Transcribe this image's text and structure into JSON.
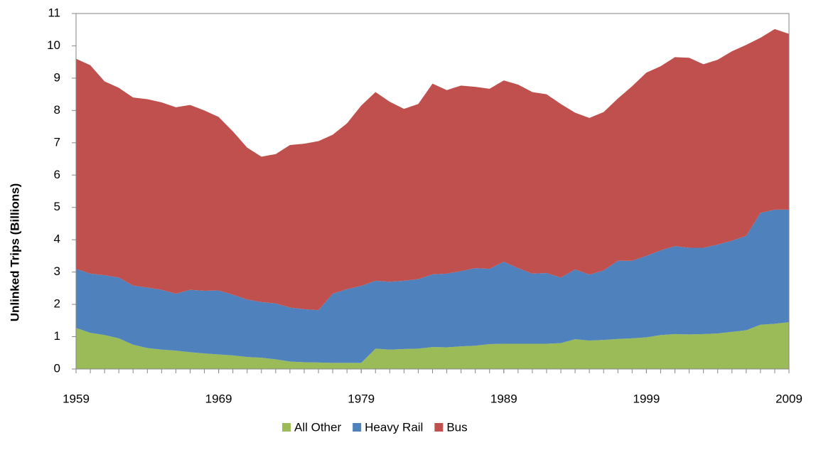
{
  "chart_data": {
    "type": "stacked_area",
    "y_label": "Unlinked Trips (Billions)",
    "x": [
      1959,
      1960,
      1961,
      1962,
      1963,
      1964,
      1965,
      1966,
      1967,
      1968,
      1969,
      1970,
      1971,
      1972,
      1973,
      1974,
      1975,
      1976,
      1977,
      1978,
      1979,
      1980,
      1981,
      1982,
      1983,
      1984,
      1985,
      1986,
      1987,
      1988,
      1989,
      1990,
      1991,
      1992,
      1993,
      1994,
      1995,
      1996,
      1997,
      1998,
      1999,
      2000,
      2001,
      2002,
      2003,
      2004,
      2005,
      2006,
      2007,
      2008,
      2009
    ],
    "series": [
      {
        "name": "All Other",
        "color": "#9bbb59",
        "values": [
          1.27,
          1.12,
          1.05,
          0.95,
          0.75,
          0.65,
          0.6,
          0.57,
          0.52,
          0.48,
          0.45,
          0.42,
          0.37,
          0.35,
          0.3,
          0.23,
          0.21,
          0.2,
          0.19,
          0.19,
          0.19,
          0.63,
          0.6,
          0.62,
          0.63,
          0.68,
          0.67,
          0.7,
          0.72,
          0.77,
          0.78,
          0.78,
          0.78,
          0.78,
          0.8,
          0.92,
          0.88,
          0.9,
          0.93,
          0.95,
          0.98,
          1.05,
          1.08,
          1.07,
          1.08,
          1.1,
          1.15,
          1.2,
          1.37,
          1.4,
          1.45
        ]
      },
      {
        "name": "Heavy Rail",
        "color": "#4f81bd",
        "values": [
          1.83,
          1.83,
          1.85,
          1.88,
          1.83,
          1.87,
          1.85,
          1.76,
          1.93,
          1.94,
          1.98,
          1.88,
          1.78,
          1.72,
          1.73,
          1.67,
          1.64,
          1.62,
          2.14,
          2.28,
          2.38,
          2.1,
          2.1,
          2.11,
          2.15,
          2.25,
          2.28,
          2.33,
          2.4,
          2.33,
          2.54,
          2.34,
          2.17,
          2.19,
          2.03,
          2.16,
          2.04,
          2.15,
          2.42,
          2.4,
          2.52,
          2.62,
          2.72,
          2.68,
          2.67,
          2.75,
          2.82,
          2.92,
          3.46,
          3.53,
          3.48
        ]
      },
      {
        "name": "Bus",
        "color": "#c0504d",
        "values": [
          6.5,
          6.45,
          6.0,
          5.87,
          5.82,
          5.83,
          5.8,
          5.77,
          5.72,
          5.58,
          5.37,
          5.05,
          4.7,
          4.5,
          4.62,
          5.03,
          5.12,
          5.23,
          4.92,
          5.13,
          5.58,
          5.84,
          5.57,
          5.32,
          5.42,
          5.9,
          5.68,
          5.74,
          5.61,
          5.57,
          5.61,
          5.68,
          5.62,
          5.53,
          5.37,
          4.85,
          4.85,
          4.9,
          5.02,
          5.4,
          5.67,
          5.7,
          5.85,
          5.88,
          5.68,
          5.72,
          5.86,
          5.91,
          5.42,
          5.59,
          5.44
        ]
      }
    ],
    "xlim": [
      1959,
      2009
    ],
    "xticks": [
      1959,
      1969,
      1979,
      1989,
      1999,
      2009
    ],
    "ylim": [
      0,
      11
    ],
    "yticks": [
      0,
      1,
      2,
      3,
      4,
      5,
      6,
      7,
      8,
      9,
      10,
      11
    ],
    "legend": "bottom"
  }
}
